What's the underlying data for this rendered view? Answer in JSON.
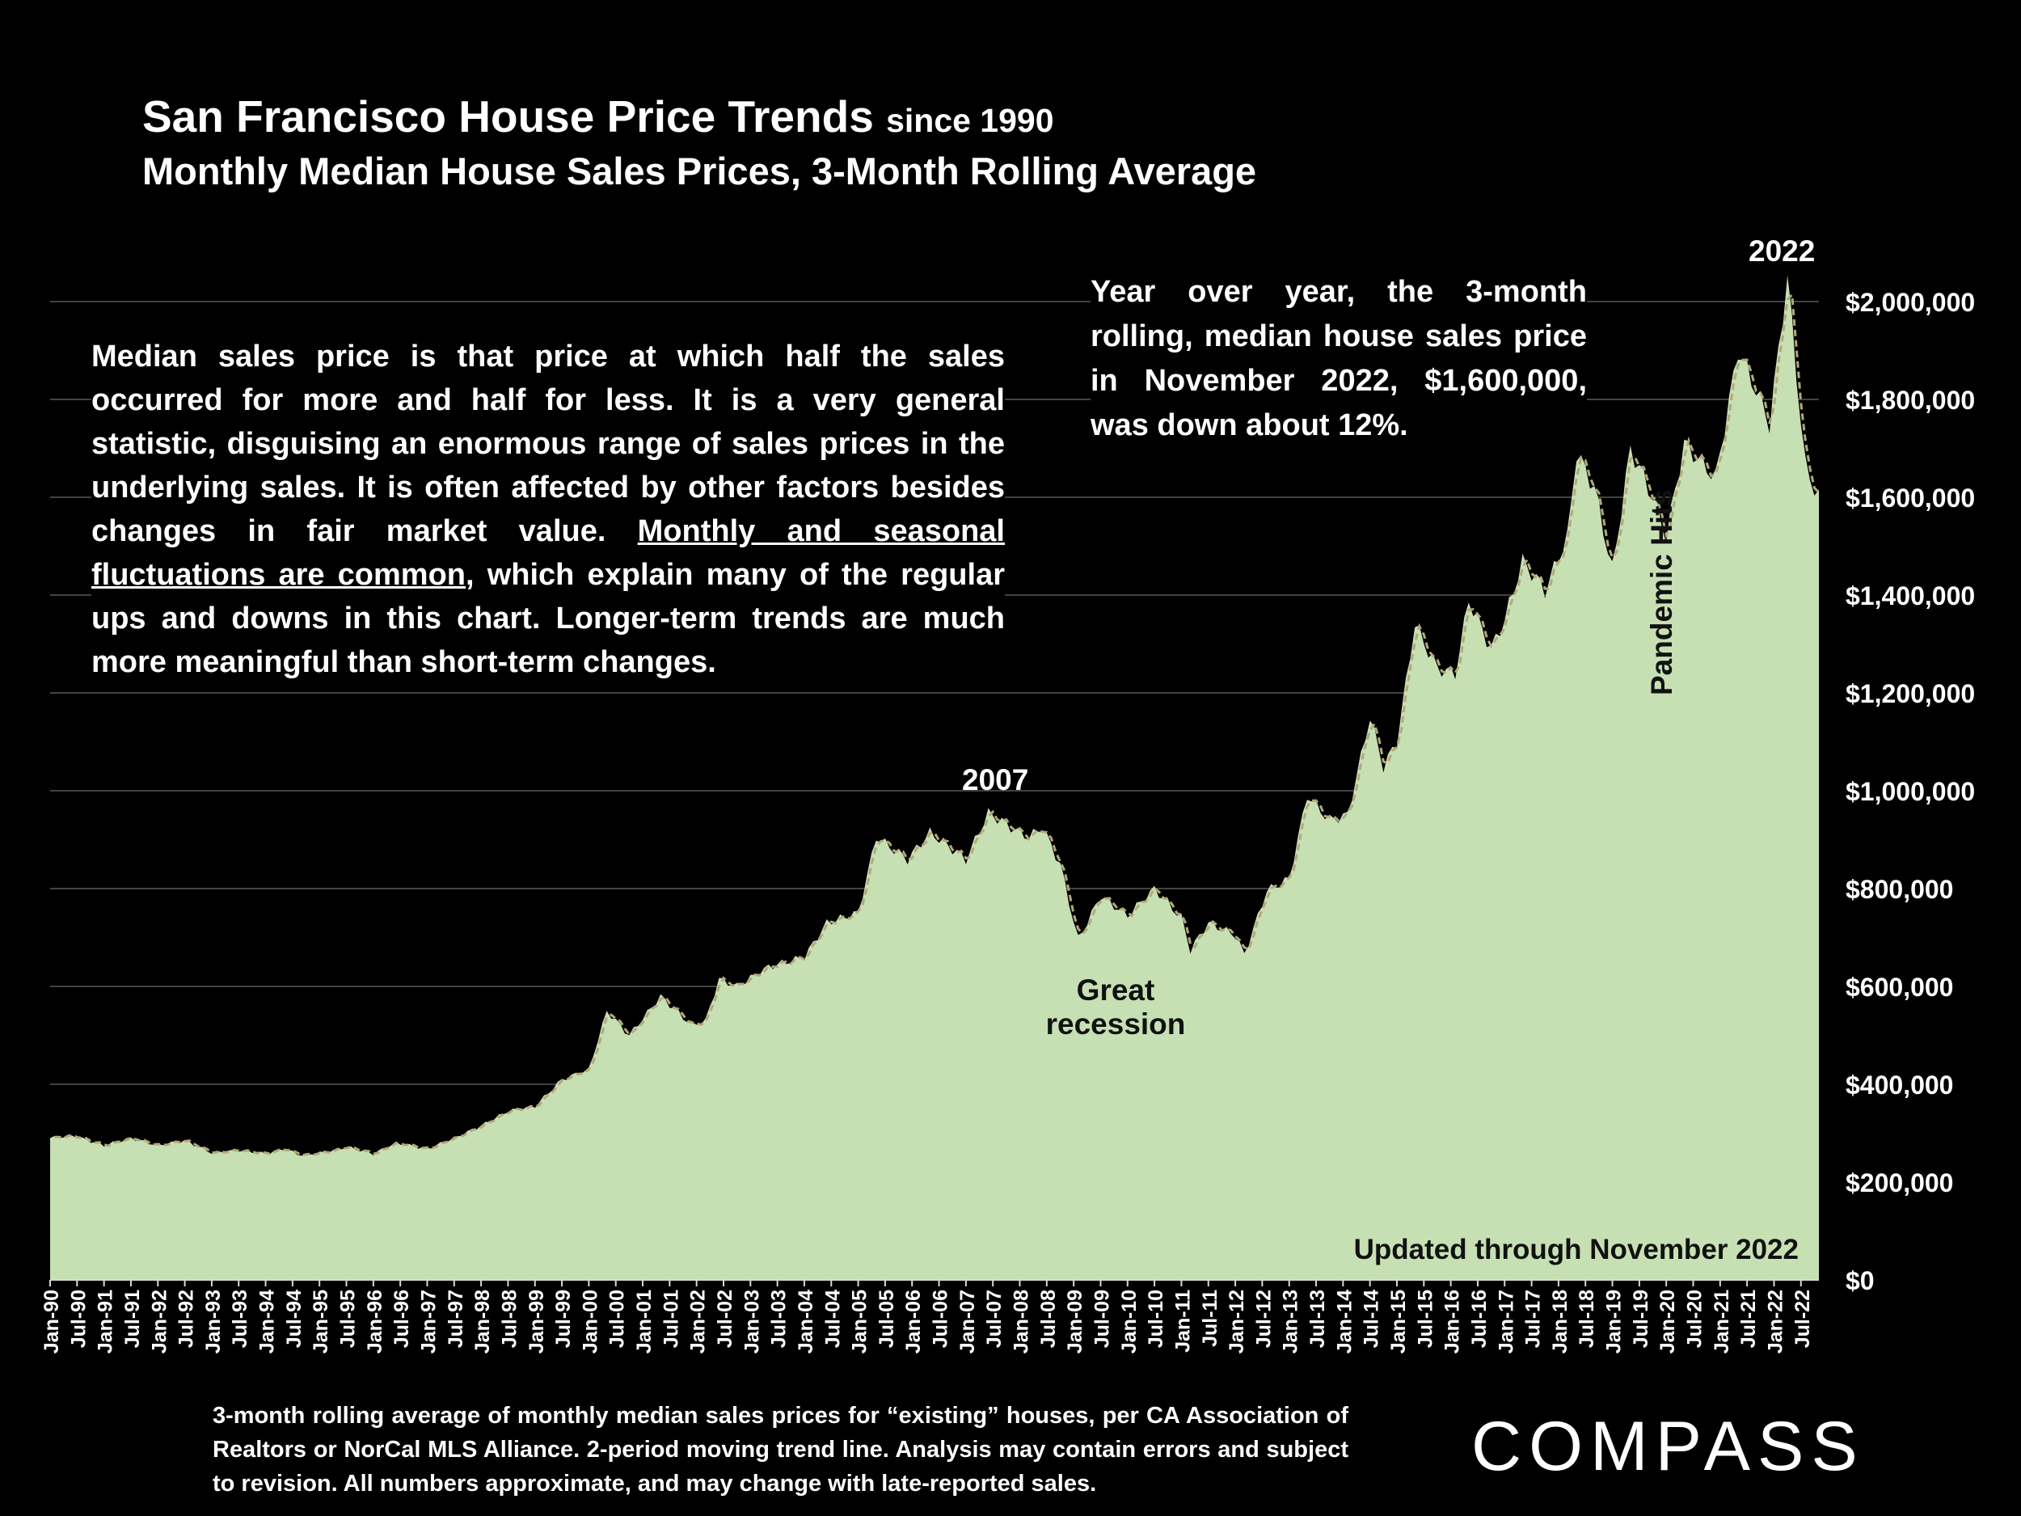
{
  "header": {
    "title": "San Francisco House Price Trends",
    "title_suffix": "since 1990",
    "subtitle": "Monthly Median House Sales Prices, 3-Month Rolling Average"
  },
  "notes": {
    "left_part1": "Median sales price is that price at which half the sales occurred for more and half for less. It is a very general statistic, disguising an enormous range of sales prices in the underlying sales. It is often affected by other factors besides changes in fair market value. ",
    "left_underlined": "Monthly and seasonal fluctuations are common",
    "left_part2": ", which explain many of the regular ups and downs in this chart. Longer-term trends are much more meaningful than short-term changes.",
    "right": "Year over year, the 3-month rolling, median house sales price in November 2022, $1,600,000, was down about 12%."
  },
  "annotations": {
    "peak_2007": "2007",
    "peak_2022": "2022",
    "recession_line1": "Great",
    "recession_line2": "recession",
    "pandemic": "Pandemic Hits",
    "updated": "Updated through November 2022"
  },
  "footer": {
    "text": "3-month rolling average of monthly median sales prices for “existing” houses, per CA Association of Realtors or NorCal MLS Alliance. 2-period moving trend line. Analysis may contain errors and subject to revision. All numbers approximate, and may change with late-reported sales.",
    "logo": "COMPASS"
  },
  "colors": {
    "background": "#000000",
    "area_fill": "#c6e0b4",
    "trend_line": "#b4a87a",
    "gridline": "#595959",
    "text": "#ffffff"
  },
  "chart_data": {
    "type": "area",
    "title": "San Francisco House Price Trends since 1990",
    "ylabel": "",
    "xlabel": "",
    "ylim": [
      0,
      2000000
    ],
    "yticks": [
      "$0",
      "$200,000",
      "$400,000",
      "$600,000",
      "$800,000",
      "$1,000,000",
      "$1,200,000",
      "$1,400,000",
      "$1,600,000",
      "$1,800,000",
      "$2,000,000"
    ],
    "ytick_values": [
      0,
      200000,
      400000,
      600000,
      800000,
      1000000,
      1200000,
      1400000,
      1600000,
      1800000,
      2000000
    ],
    "x_tick_labels": [
      "Jan-90",
      "Jul-90",
      "Jan-91",
      "Jul-91",
      "Jan-92",
      "Jul-92",
      "Jan-93",
      "Jul-93",
      "Jan-94",
      "Jul-94",
      "Jan-95",
      "Jul-95",
      "Jan-96",
      "Jul-96",
      "Jan-97",
      "Jul-97",
      "Jan-98",
      "Jul-98",
      "Jan-99",
      "Jul-99",
      "Jan-00",
      "Jul-00",
      "Jan-01",
      "Jul-01",
      "Jan-02",
      "Jul-02",
      "Jan-03",
      "Jul-03",
      "Jan-04",
      "Jul-04",
      "Jan-05",
      "Jul-05",
      "Jan-06",
      "Jul-06",
      "Jan-07",
      "Jul-07",
      "Jan-08",
      "Jul-08",
      "Jan-09",
      "Jul-09",
      "Jan-10",
      "Jul-10",
      "Jan-11",
      "Jul-11",
      "Jan-12",
      "Jul-12",
      "Jan-13",
      "Jul-13",
      "Jan-14",
      "Jul-14",
      "Jan-15",
      "Jul-15",
      "Jan-16",
      "Jul-16",
      "Jan-17",
      "Jul-17",
      "Jan-18",
      "Jul-18",
      "Jan-19",
      "Jul-19",
      "Jan-20",
      "Jul-20",
      "Jan-21",
      "Jul-21",
      "Jan-22",
      "Jul-22"
    ],
    "series_name": "3-month rolling average of monthly median sales prices",
    "trend_line": "2-period moving trend line",
    "grid": true,
    "anchor_points": [
      [
        "1990-01",
        290000
      ],
      [
        "1990-06",
        295000
      ],
      [
        "1991-01",
        275000
      ],
      [
        "1991-07",
        290000
      ],
      [
        "1992-01",
        275000
      ],
      [
        "1992-07",
        285000
      ],
      [
        "1993-01",
        260000
      ],
      [
        "1993-07",
        265000
      ],
      [
        "1994-01",
        258000
      ],
      [
        "1994-05",
        268000
      ],
      [
        "1994-09",
        255000
      ],
      [
        "1995-03",
        262000
      ],
      [
        "1995-07",
        272000
      ],
      [
        "1996-01",
        258000
      ],
      [
        "1996-06",
        280000
      ],
      [
        "1997-01",
        268000
      ],
      [
        "1997-07",
        290000
      ],
      [
        "1998-01",
        315000
      ],
      [
        "1998-07",
        345000
      ],
      [
        "1999-01",
        355000
      ],
      [
        "1999-07",
        410000
      ],
      [
        "2000-01",
        430000
      ],
      [
        "2000-05",
        550000
      ],
      [
        "2000-10",
        500000
      ],
      [
        "2001-05",
        580000
      ],
      [
        "2001-12",
        520000
      ],
      [
        "2002-03",
        530000
      ],
      [
        "2002-06",
        615000
      ],
      [
        "2002-10",
        600000
      ],
      [
        "2003-05",
        640000
      ],
      [
        "2004-01",
        660000
      ],
      [
        "2004-06",
        730000
      ],
      [
        "2005-01",
        750000
      ],
      [
        "2005-05",
        905000
      ],
      [
        "2005-12",
        860000
      ],
      [
        "2006-05",
        915000
      ],
      [
        "2007-01",
        860000
      ],
      [
        "2007-06",
        955000
      ],
      [
        "2007-12",
        920000
      ],
      [
        "2008-03",
        905000
      ],
      [
        "2008-06",
        925000
      ],
      [
        "2008-10",
        850000
      ],
      [
        "2009-02",
        695000
      ],
      [
        "2009-07",
        785000
      ],
      [
        "2010-01",
        745000
      ],
      [
        "2010-07",
        800000
      ],
      [
        "2011-01",
        740000
      ],
      [
        "2011-03",
        675000
      ],
      [
        "2011-07",
        730000
      ],
      [
        "2012-01",
        705000
      ],
      [
        "2012-03",
        665000
      ],
      [
        "2012-08",
        795000
      ],
      [
        "2013-01",
        820000
      ],
      [
        "2013-05",
        990000
      ],
      [
        "2013-10",
        940000
      ],
      [
        "2014-02",
        950000
      ],
      [
        "2014-07",
        1150000
      ],
      [
        "2014-10",
        1050000
      ],
      [
        "2015-01",
        1100000
      ],
      [
        "2015-05",
        1340000
      ],
      [
        "2015-10",
        1250000
      ],
      [
        "2016-02",
        1240000
      ],
      [
        "2016-05",
        1390000
      ],
      [
        "2016-10",
        1290000
      ],
      [
        "2017-01",
        1350000
      ],
      [
        "2017-05",
        1470000
      ],
      [
        "2017-10",
        1410000
      ],
      [
        "2018-03",
        1520000
      ],
      [
        "2018-05",
        1690000
      ],
      [
        "2018-09",
        1620000
      ],
      [
        "2019-01",
        1450000
      ],
      [
        "2019-05",
        1700000
      ],
      [
        "2019-10",
        1600000
      ],
      [
        "2020-01",
        1520000
      ],
      [
        "2020-05",
        1710000
      ],
      [
        "2020-09",
        1670000
      ],
      [
        "2020-12",
        1640000
      ],
      [
        "2021-05",
        1900000
      ],
      [
        "2021-09",
        1820000
      ],
      [
        "2021-12",
        1750000
      ],
      [
        "2022-04",
        2050000
      ],
      [
        "2022-08",
        1660000
      ],
      [
        "2022-11",
        1600000
      ]
    ]
  }
}
